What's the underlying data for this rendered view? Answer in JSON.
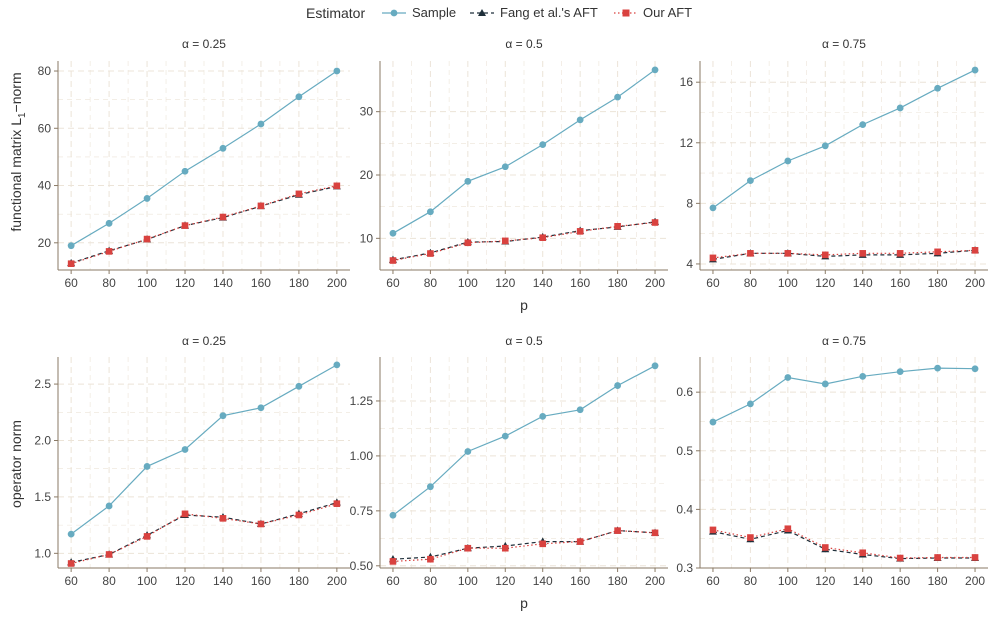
{
  "legend": {
    "title": "Estimator",
    "entries": [
      "Sample",
      "Fang et al.'s AFT",
      "Our AFT"
    ]
  },
  "colors": {
    "sample": "#67abc0",
    "fang": "#1f2f3a",
    "ours": "#d9423f",
    "grid": "#ece4d8",
    "axis": "#8a7a66"
  },
  "xlabel": "p",
  "row_labels": {
    "top_prefix": "functional matrix L",
    "top_sub": "1",
    "top_suffix": "−norm",
    "bottom": "operator norm"
  },
  "chart_data": [
    {
      "type": "line",
      "title": "α = 0.25",
      "ylabel": "functional matrix L1−norm",
      "xlabel": "",
      "x": [
        60,
        80,
        100,
        120,
        140,
        160,
        180,
        200
      ],
      "ylim": [
        10.5,
        83.5
      ],
      "yticks": [
        20,
        40,
        60,
        80
      ],
      "ytick_labels": [
        "20",
        "40",
        "60",
        "80"
      ],
      "series": [
        {
          "name": "Sample",
          "values": [
            19.0,
            26.8,
            35.5,
            45.0,
            53.0,
            61.5,
            71.0,
            80.0
          ]
        },
        {
          "name": "Fang et al.'s AFT",
          "values": [
            12.9,
            17.2,
            21.2,
            26.0,
            28.8,
            32.8,
            36.8,
            39.7
          ]
        },
        {
          "name": "Our AFT",
          "values": [
            12.7,
            17.0,
            21.3,
            26.0,
            29.0,
            32.9,
            37.1,
            39.9
          ]
        }
      ]
    },
    {
      "type": "line",
      "title": "α = 0.5",
      "ylabel": "",
      "xlabel": "p",
      "x": [
        60,
        80,
        100,
        120,
        140,
        160,
        180,
        200
      ],
      "ylim": [
        5.0,
        38.0
      ],
      "yticks": [
        10,
        20,
        30
      ],
      "ytick_labels": [
        "10",
        "20",
        "30"
      ],
      "series": [
        {
          "name": "Sample",
          "values": [
            10.8,
            14.2,
            19.0,
            21.3,
            24.8,
            28.7,
            32.3,
            36.6
          ]
        },
        {
          "name": "Fang et al.'s AFT",
          "values": [
            6.6,
            7.7,
            9.4,
            9.5,
            10.2,
            11.2,
            11.8,
            12.6
          ]
        },
        {
          "name": "Our AFT",
          "values": [
            6.5,
            7.6,
            9.3,
            9.6,
            10.1,
            11.1,
            11.9,
            12.5
          ]
        }
      ]
    },
    {
      "type": "line",
      "title": "α = 0.75",
      "ylabel": "",
      "xlabel": "",
      "x": [
        60,
        80,
        100,
        120,
        140,
        160,
        180,
        200
      ],
      "ylim": [
        3.6,
        17.4
      ],
      "yticks": [
        4,
        8,
        12,
        16
      ],
      "ytick_labels": [
        "4",
        "8",
        "12",
        "16"
      ],
      "series": [
        {
          "name": "Sample",
          "values": [
            7.7,
            9.5,
            10.8,
            11.8,
            13.2,
            14.3,
            15.6,
            16.8
          ]
        },
        {
          "name": "Fang et al.'s AFT",
          "values": [
            4.3,
            4.7,
            4.7,
            4.5,
            4.6,
            4.6,
            4.7,
            4.9
          ]
        },
        {
          "name": "Our AFT",
          "values": [
            4.4,
            4.7,
            4.7,
            4.6,
            4.7,
            4.7,
            4.8,
            4.9
          ]
        }
      ]
    },
    {
      "type": "line",
      "title": "α = 0.25",
      "ylabel": "operator norm",
      "xlabel": "",
      "x": [
        60,
        80,
        100,
        120,
        140,
        160,
        180,
        200
      ],
      "ylim": [
        0.87,
        2.74
      ],
      "yticks": [
        1.0,
        1.5,
        2.0,
        2.5
      ],
      "ytick_labels": [
        "1.0",
        "1.5",
        "2.0",
        "2.5"
      ],
      "series": [
        {
          "name": "Sample",
          "values": [
            1.17,
            1.42,
            1.77,
            1.92,
            2.22,
            2.29,
            2.48,
            2.67
          ]
        },
        {
          "name": "Fang et al.'s AFT",
          "values": [
            0.92,
            0.99,
            1.16,
            1.34,
            1.32,
            1.26,
            1.35,
            1.45
          ]
        },
        {
          "name": "Our AFT",
          "values": [
            0.91,
            0.99,
            1.15,
            1.35,
            1.31,
            1.26,
            1.34,
            1.44
          ]
        }
      ]
    },
    {
      "type": "line",
      "title": "α = 0.5",
      "ylabel": "",
      "xlabel": "p",
      "x": [
        60,
        80,
        100,
        120,
        140,
        160,
        180,
        200
      ],
      "ylim": [
        0.49,
        1.45
      ],
      "yticks": [
        0.5,
        0.75,
        1.0,
        1.25
      ],
      "ytick_labels": [
        "0.50",
        "0.75",
        "1.00",
        "1.25"
      ],
      "series": [
        {
          "name": "Sample",
          "values": [
            0.73,
            0.86,
            1.02,
            1.09,
            1.18,
            1.21,
            1.32,
            1.41
          ]
        },
        {
          "name": "Fang et al.'s AFT",
          "values": [
            0.53,
            0.54,
            0.58,
            0.59,
            0.61,
            0.61,
            0.66,
            0.65
          ]
        },
        {
          "name": "Our AFT",
          "values": [
            0.52,
            0.53,
            0.58,
            0.58,
            0.6,
            0.61,
            0.66,
            0.65
          ]
        }
      ]
    },
    {
      "type": "line",
      "title": "α = 0.75",
      "ylabel": "",
      "xlabel": "",
      "x": [
        60,
        80,
        100,
        120,
        140,
        160,
        180,
        200
      ],
      "ylim": [
        0.3,
        0.66
      ],
      "yticks": [
        0.3,
        0.4,
        0.5,
        0.6
      ],
      "ytick_labels": [
        "0.3",
        "0.4",
        "0.5",
        "0.6"
      ],
      "series": [
        {
          "name": "Sample",
          "values": [
            0.549,
            0.58,
            0.625,
            0.614,
            0.627,
            0.635,
            0.641,
            0.64
          ]
        },
        {
          "name": "Fang et al.'s AFT",
          "values": [
            0.362,
            0.349,
            0.364,
            0.332,
            0.323,
            0.316,
            0.317,
            0.317
          ]
        },
        {
          "name": "Our AFT",
          "values": [
            0.365,
            0.352,
            0.367,
            0.335,
            0.326,
            0.317,
            0.318,
            0.318
          ]
        }
      ]
    }
  ]
}
